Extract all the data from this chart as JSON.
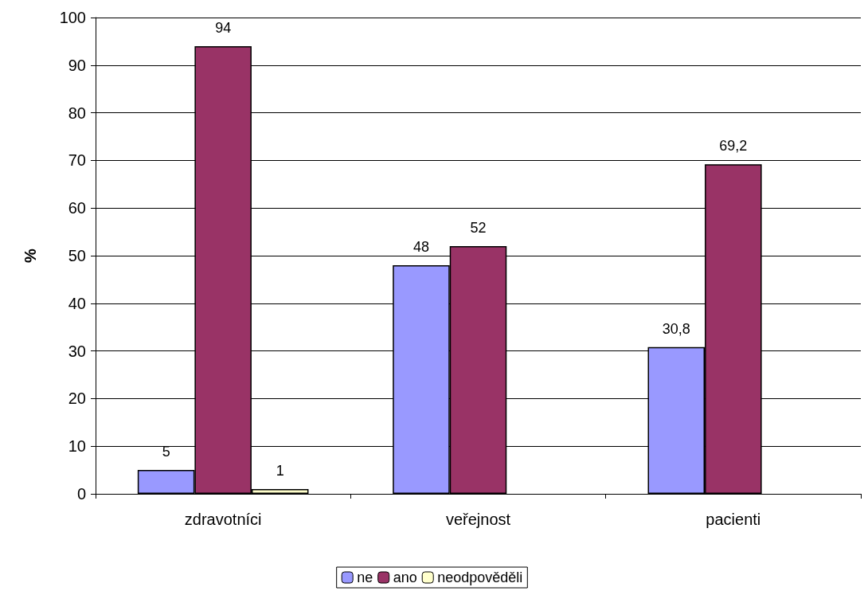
{
  "chart_data": {
    "type": "bar",
    "ylabel": "%",
    "categories": [
      "zdravotníci",
      "veřejnost",
      "pacienti"
    ],
    "series": [
      {
        "name": "ne",
        "color": "#9999ff",
        "values": [
          5,
          48,
          30.8
        ],
        "value_labels": [
          "5",
          "48",
          "30,8"
        ]
      },
      {
        "name": "ano",
        "color": "#993366",
        "values": [
          94,
          52,
          69.2
        ],
        "value_labels": [
          "94",
          "52",
          "69,2"
        ]
      },
      {
        "name": "neodpověděli",
        "color": "#ffffcc",
        "values": [
          1,
          null,
          null
        ],
        "value_labels": [
          "1",
          null,
          null
        ]
      }
    ],
    "ylim": [
      0,
      100
    ],
    "yticks": [
      0,
      10,
      20,
      30,
      40,
      50,
      60,
      70,
      80,
      90,
      100
    ],
    "grid": "y",
    "legend": "bottom"
  }
}
